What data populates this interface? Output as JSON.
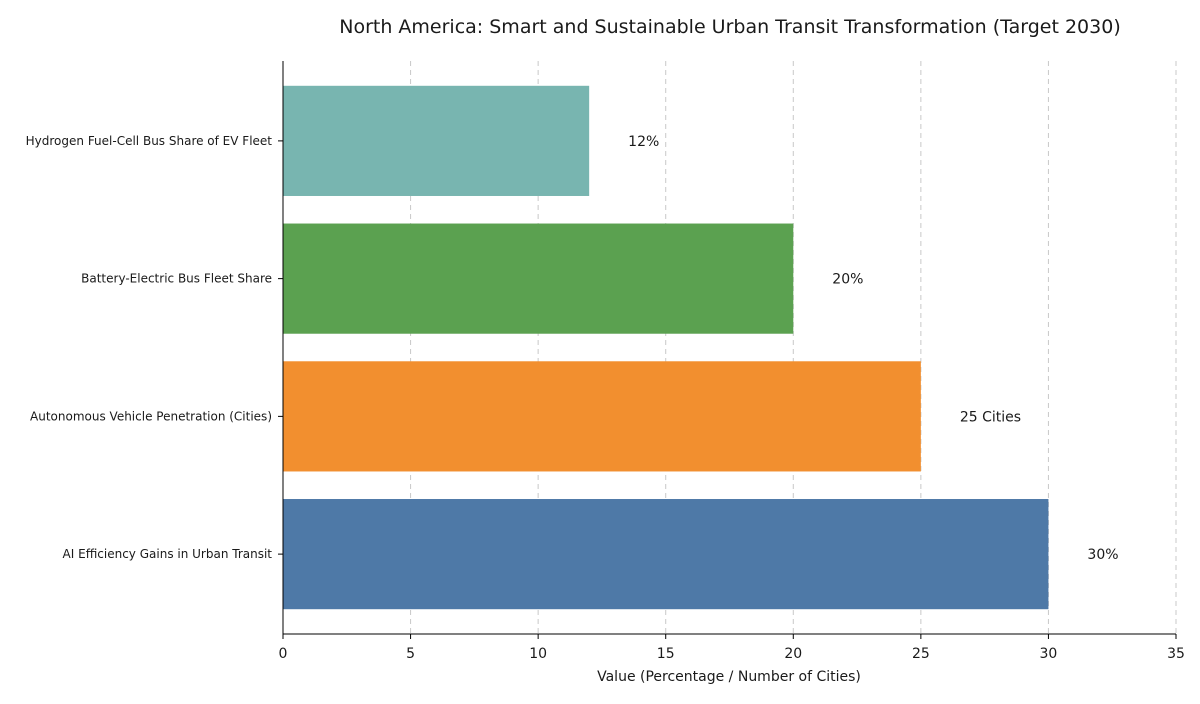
{
  "chart_data": {
    "type": "bar",
    "orientation": "horizontal",
    "title": "North America: Smart and Sustainable Urban Transit Transformation (Target 2030)",
    "xlabel": "Value (Percentage / Number of Cities)",
    "ylabel": "",
    "xlim": [
      0,
      35
    ],
    "xticks": [
      0,
      5,
      10,
      15,
      20,
      25,
      30,
      35
    ],
    "grid": "x-dashed",
    "categories": [
      "Hydrogen Fuel-Cell Bus Share of EV Fleet",
      "Battery-Electric Bus Fleet Share",
      "Autonomous Vehicle Penetration (Cities)",
      "AI Efficiency Gains in Urban Transit"
    ],
    "values": [
      12,
      20,
      25,
      30
    ],
    "data_labels": [
      "12%",
      "20%",
      "25 Cities",
      "30%"
    ],
    "colors": [
      "#78b5b0",
      "#5ba150",
      "#f28f2f",
      "#4e79a7"
    ]
  }
}
